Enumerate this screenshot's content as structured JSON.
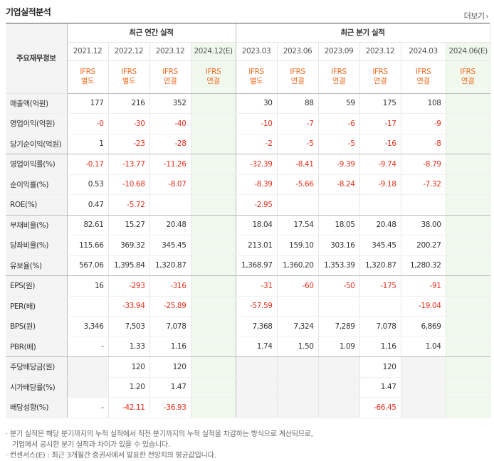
{
  "title": "기업실적분석",
  "more_label": "더보기",
  "more_chevron": "›",
  "header": {
    "row_label": "주요재무정보",
    "group_annual": "최근 연간 실적",
    "group_quarter": "최근 분기 실적",
    "periods": [
      "2021.12",
      "2022.12",
      "2023.12",
      "2024.12(E)",
      "2023.03",
      "2023.06",
      "2023.09",
      "2023.12",
      "2024.03",
      "2024.06(E)"
    ],
    "ifrs": [
      "IFRS",
      "IFRS",
      "IFRS",
      "IFRS",
      "IFRS",
      "IFRS",
      "IFRS",
      "IFRS",
      "IFRS",
      "IFRS"
    ],
    "basis": [
      "별도",
      "별도",
      "연결",
      "연결",
      "별도",
      "연결",
      "연결",
      "연결",
      "연결",
      "연결"
    ]
  },
  "rows": [
    {
      "label": "매출액(억원)",
      "values": [
        "177",
        "216",
        "352",
        "",
        "30",
        "88",
        "59",
        "175",
        "108",
        ""
      ]
    },
    {
      "label": "영업이익(억원)",
      "values": [
        "-0",
        "-30",
        "-40",
        "",
        "-10",
        "-7",
        "-6",
        "-17",
        "-9",
        ""
      ]
    },
    {
      "label": "당기순이익(억원)",
      "values": [
        "1",
        "-23",
        "-28",
        "",
        "-2",
        "-5",
        "-5",
        "-16",
        "-8",
        ""
      ]
    },
    {
      "label": "영업이익률(%)",
      "values": [
        "-0.17",
        "-13.77",
        "-11.26",
        "",
        "-32.39",
        "-8.41",
        "-9.39",
        "-9.74",
        "-8.79",
        ""
      ]
    },
    {
      "label": "순이익률(%)",
      "values": [
        "0.53",
        "-10.68",
        "-8.07",
        "",
        "-8.39",
        "-5.66",
        "-8.24",
        "-9.18",
        "-7.32",
        ""
      ]
    },
    {
      "label": "ROE(%)",
      "values": [
        "0.47",
        "-5.72",
        "",
        "",
        "-2.95",
        "",
        "",
        "",
        "",
        ""
      ]
    },
    {
      "label": "부채비율(%)",
      "values": [
        "82.61",
        "15.27",
        "20.48",
        "",
        "18.04",
        "17.54",
        "18.05",
        "20.48",
        "38.00",
        ""
      ]
    },
    {
      "label": "당좌비율(%)",
      "values": [
        "115.66",
        "369.32",
        "345.45",
        "",
        "213.01",
        "159.10",
        "303.16",
        "345.45",
        "200.27",
        ""
      ]
    },
    {
      "label": "유보율(%)",
      "values": [
        "567.06",
        "1,395.84",
        "1,320.87",
        "",
        "1,368.97",
        "1,360.20",
        "1,353.39",
        "1,320.87",
        "1,280.32",
        ""
      ]
    },
    {
      "label": "EPS(원)",
      "values": [
        "16",
        "-293",
        "-316",
        "",
        "-31",
        "-60",
        "-50",
        "-175",
        "-91",
        ""
      ]
    },
    {
      "label": "PER(배)",
      "values": [
        "",
        "-33.94",
        "-25.89",
        "",
        "-57.59",
        "",
        "",
        "",
        "-19.04",
        ""
      ]
    },
    {
      "label": "BPS(원)",
      "values": [
        "3,346",
        "7,503",
        "7,078",
        "",
        "7,368",
        "7,324",
        "7,289",
        "7,078",
        "6,869",
        ""
      ]
    },
    {
      "label": "PBR(배)",
      "values": [
        "-",
        "1.33",
        "1.16",
        "",
        "1.74",
        "1.50",
        "1.09",
        "1.16",
        "1.04",
        ""
      ]
    },
    {
      "label": "주당배당금(원)",
      "values": [
        "",
        "120",
        "120",
        "",
        "",
        "",
        "",
        "120",
        "",
        ""
      ]
    },
    {
      "label": "시가배당률(%)",
      "values": [
        "",
        "1.20",
        "1.47",
        "",
        "",
        "",
        "",
        "1.47",
        "",
        ""
      ]
    },
    {
      "label": "배당성향(%)",
      "values": [
        "-",
        "-42.11",
        "-36.93",
        "",
        "",
        "",
        "",
        "-66.45",
        "",
        ""
      ]
    }
  ],
  "notes": [
    "· 분기 실적은 해당 분기까지의 누적 실적에서 직전 분기까지의 누적 실적을 차감하는 방식으로 계산되므로,",
    "  기업에서 공시한 분기 실적과 차이가 있을 수 있습니다.",
    "· 컨센서스(E) : 최근 3개월간 증권사에서 발표한 전망치의 평균값입니다."
  ],
  "colors": {
    "negative": "#e8301d",
    "ifrs": "#f26d21",
    "estimate_bg": "#f1f9ef",
    "estimate_text": "#2a9a2a"
  }
}
